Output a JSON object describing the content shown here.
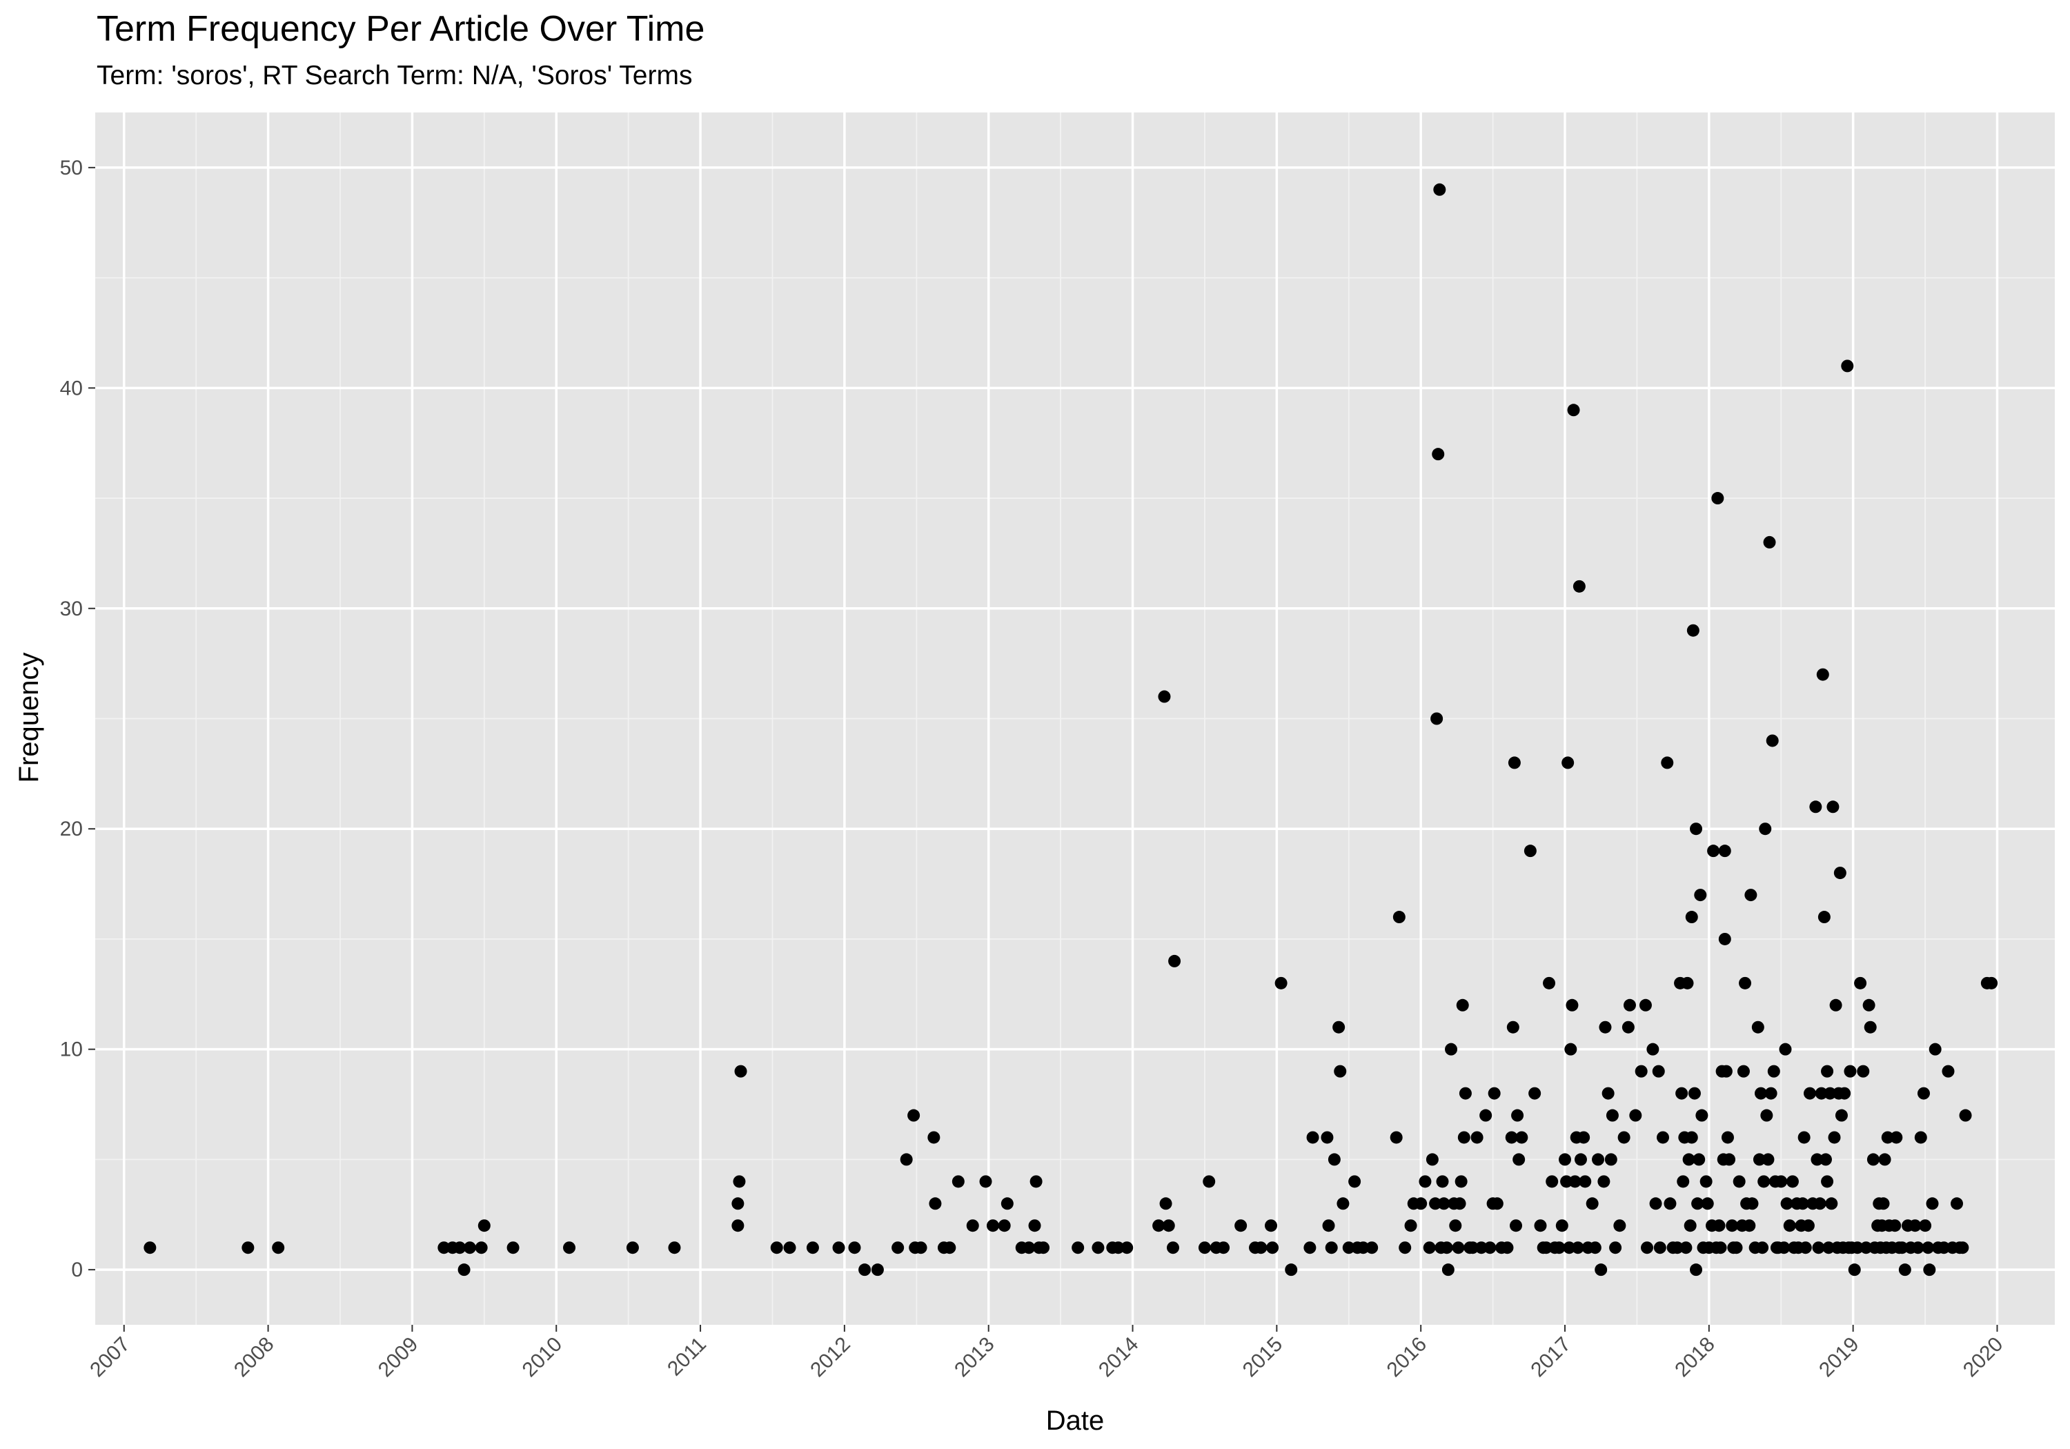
{
  "chart_data": {
    "type": "scatter",
    "title": "Term Frequency Per Article Over Time",
    "subtitle": "Term: 'soros', RT Search Term: N/A, 'Soros' Terms",
    "xlabel": "Date",
    "ylabel": "Frequency",
    "xlim": [
      2006.8,
      2020.4
    ],
    "ylim": [
      -2.5,
      52.5
    ],
    "x_ticks": [
      "2007",
      "2008",
      "2009",
      "2010",
      "2011",
      "2012",
      "2013",
      "2014",
      "2015",
      "2016",
      "2017",
      "2018",
      "2019",
      "2020"
    ],
    "y_ticks": [
      0,
      10,
      20,
      30,
      40,
      50
    ],
    "grid": true,
    "points": [
      [
        2007.18,
        1
      ],
      [
        2007.86,
        1
      ],
      [
        2008.07,
        1
      ],
      [
        2009.22,
        1
      ],
      [
        2009.28,
        1
      ],
      [
        2009.33,
        1
      ],
      [
        2009.36,
        0
      ],
      [
        2009.4,
        1
      ],
      [
        2009.48,
        1
      ],
      [
        2009.5,
        2
      ],
      [
        2009.7,
        1
      ],
      [
        2010.09,
        1
      ],
      [
        2010.53,
        1
      ],
      [
        2010.82,
        1
      ],
      [
        2011.26,
        2
      ],
      [
        2011.26,
        3
      ],
      [
        2011.27,
        4
      ],
      [
        2011.28,
        9
      ],
      [
        2011.53,
        1
      ],
      [
        2011.62,
        1
      ],
      [
        2011.78,
        1
      ],
      [
        2011.96,
        1
      ],
      [
        2012.07,
        1
      ],
      [
        2012.14,
        0
      ],
      [
        2012.23,
        0
      ],
      [
        2012.37,
        1
      ],
      [
        2012.43,
        5
      ],
      [
        2012.48,
        7
      ],
      [
        2012.49,
        1
      ],
      [
        2012.53,
        1
      ],
      [
        2012.62,
        6
      ],
      [
        2012.63,
        3
      ],
      [
        2012.69,
        1
      ],
      [
        2012.73,
        1
      ],
      [
        2012.79,
        4
      ],
      [
        2012.89,
        2
      ],
      [
        2012.98,
        4
      ],
      [
        2013.03,
        2
      ],
      [
        2013.11,
        2
      ],
      [
        2013.13,
        3
      ],
      [
        2013.23,
        1
      ],
      [
        2013.28,
        1
      ],
      [
        2013.32,
        2
      ],
      [
        2013.33,
        4
      ],
      [
        2013.35,
        1
      ],
      [
        2013.38,
        1
      ],
      [
        2013.62,
        1
      ],
      [
        2013.76,
        1
      ],
      [
        2013.86,
        1
      ],
      [
        2013.9,
        1
      ],
      [
        2013.96,
        1
      ],
      [
        2014.18,
        2
      ],
      [
        2014.22,
        26
      ],
      [
        2014.23,
        3
      ],
      [
        2014.25,
        2
      ],
      [
        2014.28,
        1
      ],
      [
        2014.29,
        14
      ],
      [
        2014.5,
        1
      ],
      [
        2014.53,
        4
      ],
      [
        2014.58,
        1
      ],
      [
        2014.63,
        1
      ],
      [
        2014.75,
        2
      ],
      [
        2014.85,
        1
      ],
      [
        2014.89,
        1
      ],
      [
        2014.96,
        2
      ],
      [
        2014.97,
        1
      ],
      [
        2015.03,
        13
      ],
      [
        2015.1,
        0
      ],
      [
        2015.23,
        1
      ],
      [
        2015.25,
        6
      ],
      [
        2015.35,
        6
      ],
      [
        2015.36,
        2
      ],
      [
        2015.38,
        1
      ],
      [
        2015.4,
        5
      ],
      [
        2015.43,
        11
      ],
      [
        2015.44,
        9
      ],
      [
        2015.46,
        3
      ],
      [
        2015.5,
        1
      ],
      [
        2015.54,
        4
      ],
      [
        2015.56,
        1
      ],
      [
        2015.6,
        1
      ],
      [
        2015.66,
        1
      ],
      [
        2015.83,
        6
      ],
      [
        2015.85,
        16
      ],
      [
        2015.89,
        1
      ],
      [
        2015.93,
        2
      ],
      [
        2015.95,
        3
      ],
      [
        2016.0,
        3
      ],
      [
        2016.03,
        4
      ],
      [
        2016.06,
        1
      ],
      [
        2016.08,
        5
      ],
      [
        2016.1,
        3
      ],
      [
        2016.11,
        25
      ],
      [
        2016.12,
        37
      ],
      [
        2016.13,
        49
      ],
      [
        2016.14,
        1
      ],
      [
        2016.15,
        4
      ],
      [
        2016.16,
        3
      ],
      [
        2016.18,
        1
      ],
      [
        2016.19,
        0
      ],
      [
        2016.21,
        10
      ],
      [
        2016.23,
        3
      ],
      [
        2016.24,
        2
      ],
      [
        2016.26,
        1
      ],
      [
        2016.27,
        3
      ],
      [
        2016.28,
        4
      ],
      [
        2016.29,
        12
      ],
      [
        2016.3,
        6
      ],
      [
        2016.31,
        8
      ],
      [
        2016.34,
        1
      ],
      [
        2016.36,
        1
      ],
      [
        2016.39,
        6
      ],
      [
        2016.42,
        1
      ],
      [
        2016.45,
        7
      ],
      [
        2016.48,
        1
      ],
      [
        2016.5,
        3
      ],
      [
        2016.51,
        8
      ],
      [
        2016.53,
        3
      ],
      [
        2016.56,
        1
      ],
      [
        2016.6,
        1
      ],
      [
        2016.63,
        6
      ],
      [
        2016.64,
        11
      ],
      [
        2016.65,
        23
      ],
      [
        2016.66,
        2
      ],
      [
        2016.67,
        7
      ],
      [
        2016.68,
        5
      ],
      [
        2016.7,
        6
      ],
      [
        2016.76,
        19
      ],
      [
        2016.79,
        8
      ],
      [
        2016.83,
        2
      ],
      [
        2016.85,
        1
      ],
      [
        2016.87,
        1
      ],
      [
        2016.89,
        13
      ],
      [
        2016.91,
        4
      ],
      [
        2016.93,
        1
      ],
      [
        2016.96,
        1
      ],
      [
        2016.98,
        2
      ],
      [
        2017.0,
        5
      ],
      [
        2017.01,
        4
      ],
      [
        2017.02,
        23
      ],
      [
        2017.03,
        1
      ],
      [
        2017.04,
        10
      ],
      [
        2017.05,
        12
      ],
      [
        2017.06,
        39
      ],
      [
        2017.07,
        4
      ],
      [
        2017.08,
        6
      ],
      [
        2017.09,
        1
      ],
      [
        2017.1,
        31
      ],
      [
        2017.11,
        5
      ],
      [
        2017.13,
        6
      ],
      [
        2017.14,
        4
      ],
      [
        2017.16,
        1
      ],
      [
        2017.19,
        3
      ],
      [
        2017.21,
        1
      ],
      [
        2017.23,
        5
      ],
      [
        2017.25,
        0
      ],
      [
        2017.27,
        4
      ],
      [
        2017.28,
        11
      ],
      [
        2017.3,
        8
      ],
      [
        2017.32,
        5
      ],
      [
        2017.33,
        7
      ],
      [
        2017.35,
        1
      ],
      [
        2017.38,
        2
      ],
      [
        2017.41,
        6
      ],
      [
        2017.44,
        11
      ],
      [
        2017.45,
        12
      ],
      [
        2017.49,
        7
      ],
      [
        2017.53,
        9
      ],
      [
        2017.56,
        12
      ],
      [
        2017.57,
        1
      ],
      [
        2017.61,
        10
      ],
      [
        2017.63,
        3
      ],
      [
        2017.65,
        9
      ],
      [
        2017.66,
        1
      ],
      [
        2017.68,
        6
      ],
      [
        2017.71,
        23
      ],
      [
        2017.73,
        3
      ],
      [
        2017.75,
        1
      ],
      [
        2017.78,
        1
      ],
      [
        2017.8,
        13
      ],
      [
        2017.81,
        8
      ],
      [
        2017.82,
        4
      ],
      [
        2017.83,
        6
      ],
      [
        2017.84,
        1
      ],
      [
        2017.85,
        13
      ],
      [
        2017.86,
        5
      ],
      [
        2017.87,
        2
      ],
      [
        2017.88,
        16
      ],
      [
        2017.88,
        6
      ],
      [
        2017.89,
        29
      ],
      [
        2017.9,
        8
      ],
      [
        2017.91,
        20
      ],
      [
        2017.91,
        0
      ],
      [
        2017.92,
        3
      ],
      [
        2017.93,
        5
      ],
      [
        2017.94,
        17
      ],
      [
        2017.95,
        7
      ],
      [
        2017.96,
        1
      ],
      [
        2017.98,
        4
      ],
      [
        2017.99,
        3
      ],
      [
        2018.0,
        1
      ],
      [
        2018.02,
        2
      ],
      [
        2018.03,
        19
      ],
      [
        2018.05,
        1
      ],
      [
        2018.06,
        35
      ],
      [
        2018.07,
        2
      ],
      [
        2018.08,
        1
      ],
      [
        2018.09,
        9
      ],
      [
        2018.1,
        5
      ],
      [
        2018.11,
        19
      ],
      [
        2018.11,
        15
      ],
      [
        2018.12,
        9
      ],
      [
        2018.13,
        6
      ],
      [
        2018.14,
        5
      ],
      [
        2018.16,
        2
      ],
      [
        2018.17,
        1
      ],
      [
        2018.19,
        1
      ],
      [
        2018.21,
        4
      ],
      [
        2018.23,
        2
      ],
      [
        2018.24,
        9
      ],
      [
        2018.25,
        13
      ],
      [
        2018.26,
        3
      ],
      [
        2018.28,
        2
      ],
      [
        2018.29,
        17
      ],
      [
        2018.3,
        3
      ],
      [
        2018.32,
        1
      ],
      [
        2018.34,
        11
      ],
      [
        2018.35,
        5
      ],
      [
        2018.36,
        8
      ],
      [
        2018.37,
        1
      ],
      [
        2018.38,
        4
      ],
      [
        2018.39,
        20
      ],
      [
        2018.4,
        7
      ],
      [
        2018.41,
        5
      ],
      [
        2018.42,
        33
      ],
      [
        2018.43,
        8
      ],
      [
        2018.44,
        24
      ],
      [
        2018.45,
        9
      ],
      [
        2018.46,
        4
      ],
      [
        2018.47,
        1
      ],
      [
        2018.48,
        1
      ],
      [
        2018.5,
        4
      ],
      [
        2018.52,
        1
      ],
      [
        2018.53,
        10
      ],
      [
        2018.54,
        3
      ],
      [
        2018.56,
        2
      ],
      [
        2018.58,
        4
      ],
      [
        2018.59,
        1
      ],
      [
        2018.61,
        3
      ],
      [
        2018.62,
        1
      ],
      [
        2018.64,
        2
      ],
      [
        2018.65,
        3
      ],
      [
        2018.66,
        6
      ],
      [
        2018.67,
        1
      ],
      [
        2018.69,
        2
      ],
      [
        2018.7,
        8
      ],
      [
        2018.72,
        3
      ],
      [
        2018.74,
        21
      ],
      [
        2018.75,
        5
      ],
      [
        2018.76,
        1
      ],
      [
        2018.77,
        3
      ],
      [
        2018.78,
        8
      ],
      [
        2018.79,
        27
      ],
      [
        2018.8,
        16
      ],
      [
        2018.81,
        5
      ],
      [
        2018.82,
        9
      ],
      [
        2018.82,
        4
      ],
      [
        2018.83,
        1
      ],
      [
        2018.84,
        8
      ],
      [
        2018.85,
        3
      ],
      [
        2018.86,
        21
      ],
      [
        2018.87,
        6
      ],
      [
        2018.88,
        12
      ],
      [
        2018.89,
        1
      ],
      [
        2018.9,
        8
      ],
      [
        2018.91,
        18
      ],
      [
        2018.92,
        7
      ],
      [
        2018.93,
        1
      ],
      [
        2018.94,
        8
      ],
      [
        2018.96,
        41
      ],
      [
        2018.97,
        1
      ],
      [
        2018.98,
        9
      ],
      [
        2018.99,
        1
      ],
      [
        2019.01,
        0
      ],
      [
        2019.03,
        1
      ],
      [
        2019.05,
        13
      ],
      [
        2019.07,
        9
      ],
      [
        2019.09,
        1
      ],
      [
        2019.11,
        12
      ],
      [
        2019.12,
        11
      ],
      [
        2019.14,
        5
      ],
      [
        2019.15,
        1
      ],
      [
        2019.17,
        2
      ],
      [
        2019.18,
        3
      ],
      [
        2019.19,
        1
      ],
      [
        2019.2,
        2
      ],
      [
        2019.21,
        3
      ],
      [
        2019.22,
        5
      ],
      [
        2019.23,
        1
      ],
      [
        2019.24,
        6
      ],
      [
        2019.25,
        2
      ],
      [
        2019.27,
        1
      ],
      [
        2019.29,
        2
      ],
      [
        2019.3,
        6
      ],
      [
        2019.32,
        1
      ],
      [
        2019.34,
        1
      ],
      [
        2019.36,
        0
      ],
      [
        2019.38,
        2
      ],
      [
        2019.4,
        1
      ],
      [
        2019.43,
        2
      ],
      [
        2019.45,
        1
      ],
      [
        2019.47,
        6
      ],
      [
        2019.49,
        8
      ],
      [
        2019.5,
        2
      ],
      [
        2019.52,
        1
      ],
      [
        2019.53,
        0
      ],
      [
        2019.55,
        3
      ],
      [
        2019.57,
        10
      ],
      [
        2019.59,
        1
      ],
      [
        2019.63,
        1
      ],
      [
        2019.66,
        9
      ],
      [
        2019.69,
        1
      ],
      [
        2019.72,
        3
      ],
      [
        2019.74,
        1
      ],
      [
        2019.76,
        1
      ],
      [
        2019.78,
        7
      ],
      [
        2019.93,
        13
      ],
      [
        2019.96,
        13
      ]
    ]
  }
}
